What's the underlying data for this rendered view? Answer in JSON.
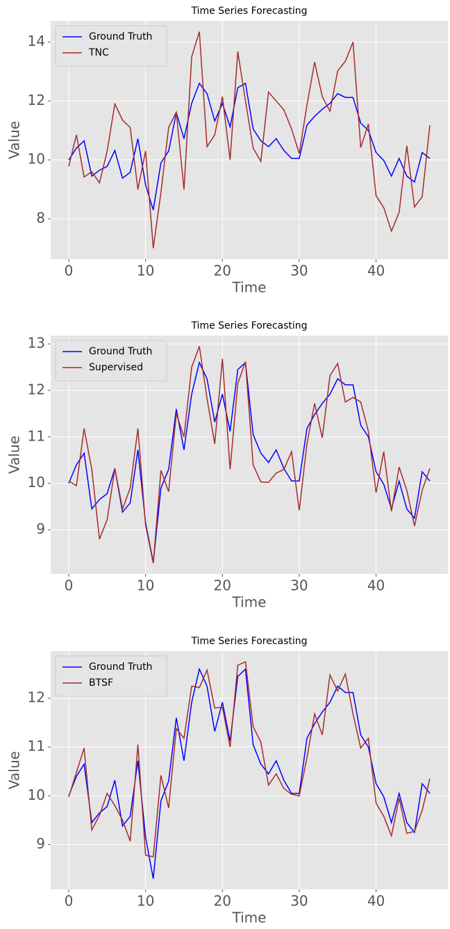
{
  "chart_data": [
    {
      "type": "line",
      "title": "Time Series Forecasting",
      "x_label": "Time",
      "y_label": "Value",
      "x": [
        0,
        1,
        2,
        3,
        4,
        5,
        6,
        7,
        8,
        9,
        10,
        11,
        12,
        13,
        14,
        15,
        16,
        17,
        18,
        19,
        20,
        21,
        22,
        23,
        24,
        25,
        26,
        27,
        28,
        29,
        30,
        31,
        32,
        33,
        34,
        35,
        36,
        37,
        38,
        39,
        40,
        41,
        42,
        43,
        44,
        45,
        46,
        47
      ],
      "series": [
        {
          "name": "Ground Truth",
          "color": "#0000ff",
          "values": [
            10.0,
            10.4,
            10.65,
            9.45,
            9.65,
            9.78,
            10.32,
            9.38,
            9.58,
            10.72,
            9.15,
            8.3,
            9.9,
            10.3,
            11.6,
            10.72,
            11.92,
            12.6,
            12.25,
            11.32,
            11.92,
            11.12,
            12.45,
            12.6,
            11.05,
            10.65,
            10.45,
            10.72,
            10.32,
            10.05,
            10.05,
            11.18,
            11.48,
            11.72,
            11.92,
            12.25,
            12.12,
            12.12,
            11.25,
            11.0,
            10.25,
            9.98,
            9.45,
            10.05,
            9.45,
            9.25,
            10.25,
            10.05
          ]
        },
        {
          "name": "TNC",
          "color": "#a52a2a",
          "values": [
            9.78,
            10.85,
            9.42,
            9.6,
            9.22,
            10.3,
            11.9,
            11.35,
            11.1,
            9.0,
            10.3,
            7.0,
            8.9,
            11.1,
            11.62,
            9.0,
            13.5,
            14.35,
            10.45,
            10.85,
            12.15,
            10.0,
            13.68,
            12.0,
            10.4,
            9.95,
            12.3,
            12.0,
            11.7,
            11.05,
            10.22,
            11.85,
            13.32,
            12.15,
            11.65,
            13.02,
            13.35,
            14.0,
            10.42,
            11.22,
            8.78,
            8.38,
            7.58,
            8.22,
            10.48,
            8.4,
            8.75,
            11.18
          ]
        }
      ],
      "xlim": [
        -2.35,
        49.35
      ],
      "xticks": [
        0,
        10,
        20,
        30,
        40
      ],
      "ylim": [
        6.63,
        14.72
      ],
      "yticks": [
        8,
        10,
        12,
        14
      ],
      "grid": true,
      "legend": "upper left"
    },
    {
      "type": "line",
      "title": "Time Series Forecasting",
      "x_label": "Time",
      "y_label": "Value",
      "x": [
        0,
        1,
        2,
        3,
        4,
        5,
        6,
        7,
        8,
        9,
        10,
        11,
        12,
        13,
        14,
        15,
        16,
        17,
        18,
        19,
        20,
        21,
        22,
        23,
        24,
        25,
        26,
        27,
        28,
        29,
        30,
        31,
        32,
        33,
        34,
        35,
        36,
        37,
        38,
        39,
        40,
        41,
        42,
        43,
        44,
        45,
        46,
        47
      ],
      "series": [
        {
          "name": "Ground Truth",
          "color": "#0000ff",
          "values": [
            10.0,
            10.4,
            10.65,
            9.45,
            9.65,
            9.78,
            10.32,
            9.38,
            9.58,
            10.72,
            9.15,
            8.3,
            9.9,
            10.3,
            11.6,
            10.72,
            11.92,
            12.6,
            12.25,
            11.32,
            11.92,
            11.12,
            12.45,
            12.6,
            11.05,
            10.65,
            10.45,
            10.72,
            10.32,
            10.05,
            10.05,
            11.18,
            11.48,
            11.72,
            11.92,
            12.25,
            12.12,
            12.12,
            11.25,
            11.0,
            10.25,
            9.98,
            9.45,
            10.05,
            9.45,
            9.25,
            10.25,
            10.05
          ]
        },
        {
          "name": "Supervised",
          "color": "#a52a2a",
          "values": [
            10.05,
            9.95,
            11.18,
            10.3,
            8.8,
            9.22,
            10.32,
            9.45,
            9.9,
            11.18,
            9.1,
            8.28,
            10.28,
            9.82,
            11.5,
            11.0,
            12.5,
            12.95,
            11.82,
            10.85,
            12.68,
            10.3,
            12.15,
            12.62,
            10.4,
            10.03,
            10.02,
            10.22,
            10.3,
            10.68,
            9.42,
            10.85,
            11.72,
            10.98,
            12.32,
            12.58,
            11.75,
            11.85,
            11.75,
            11.12,
            9.8,
            10.68,
            9.4,
            10.35,
            9.85,
            9.08,
            9.85,
            10.32
          ]
        }
      ],
      "xlim": [
        -2.35,
        49.35
      ],
      "xticks": [
        0,
        10,
        20,
        30,
        40
      ],
      "ylim": [
        8.05,
        13.18
      ],
      "yticks": [
        9,
        10,
        11,
        12,
        13
      ],
      "grid": true,
      "legend": "upper left"
    },
    {
      "type": "line",
      "title": "Time Series Forecasting",
      "x_label": "Time",
      "y_label": "Value",
      "x": [
        0,
        1,
        2,
        3,
        4,
        5,
        6,
        7,
        8,
        9,
        10,
        11,
        12,
        13,
        14,
        15,
        16,
        17,
        18,
        19,
        20,
        21,
        22,
        23,
        24,
        25,
        26,
        27,
        28,
        29,
        30,
        31,
        32,
        33,
        34,
        35,
        36,
        37,
        38,
        39,
        40,
        41,
        42,
        43,
        44,
        45,
        46,
        47
      ],
      "series": [
        {
          "name": "Ground Truth",
          "color": "#0000ff",
          "values": [
            10.0,
            10.4,
            10.65,
            9.45,
            9.65,
            9.78,
            10.32,
            9.38,
            9.58,
            10.72,
            9.15,
            8.3,
            9.9,
            10.3,
            11.6,
            10.72,
            11.92,
            12.6,
            12.25,
            11.32,
            11.92,
            11.12,
            12.45,
            12.6,
            11.05,
            10.65,
            10.45,
            10.72,
            10.32,
            10.05,
            10.05,
            11.18,
            11.48,
            11.72,
            11.92,
            12.25,
            12.12,
            12.12,
            11.25,
            11.0,
            10.25,
            9.98,
            9.45,
            10.05,
            9.45,
            9.25,
            10.25,
            10.05
          ]
        },
        {
          "name": "BTSF",
          "color": "#a52a2a",
          "values": [
            9.98,
            10.48,
            10.98,
            9.3,
            9.6,
            10.05,
            9.8,
            9.5,
            9.07,
            11.05,
            8.78,
            8.75,
            10.42,
            9.75,
            11.38,
            11.18,
            12.25,
            12.22,
            12.58,
            11.8,
            11.82,
            11.0,
            12.68,
            12.75,
            11.42,
            11.1,
            10.22,
            10.45,
            10.15,
            10.03,
            10.0,
            10.78,
            11.68,
            11.25,
            12.48,
            12.15,
            12.5,
            11.68,
            10.98,
            11.18,
            9.85,
            9.58,
            9.18,
            9.95,
            9.23,
            9.27,
            9.7,
            10.35
          ]
        }
      ],
      "xlim": [
        -2.35,
        49.35
      ],
      "xticks": [
        0,
        10,
        20,
        30,
        40
      ],
      "ylim": [
        8.08,
        12.97
      ],
      "yticks": [
        9,
        10,
        11,
        12
      ],
      "grid": true,
      "legend": "upper left"
    }
  ]
}
